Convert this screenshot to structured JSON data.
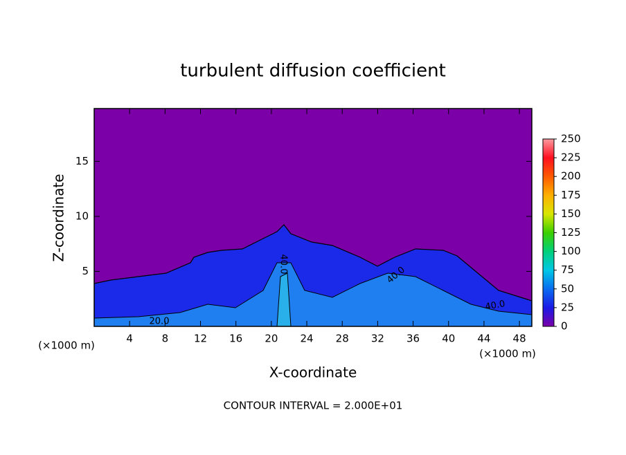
{
  "chart_data": {
    "type": "contour",
    "title": "turbulent diffusion coefficient",
    "x_label": "X-coordinate",
    "y_label": "Z-coordinate",
    "x_unit": "(×1000 m)",
    "y_unit": "(×1000 m)",
    "footnote": "CONTOUR INTERVAL = 2.000E+01",
    "xlim": [
      0,
      49.4
    ],
    "xticks": [
      4,
      8,
      12,
      16,
      20,
      24,
      28,
      32,
      36,
      40,
      44,
      48
    ],
    "ylim": [
      0,
      19.8
    ],
    "yticks": [
      5,
      10,
      15
    ],
    "colorbar_lim": [
      0,
      250
    ],
    "colorbar_ticks": [
      0,
      25,
      50,
      75,
      100,
      125,
      150,
      175,
      200,
      225,
      250
    ],
    "colormap": [
      "#7b00a8",
      "#1a1ae6",
      "#0a6cf0",
      "#00c8e6",
      "#00d07a",
      "#3ccf00",
      "#d8e600",
      "#ffb000",
      "#ff5a00",
      "#ff1020",
      "#ff9aa0"
    ],
    "contour_labels": [
      "40.0",
      "40.0",
      "20.0",
      "40.0"
    ]
  }
}
